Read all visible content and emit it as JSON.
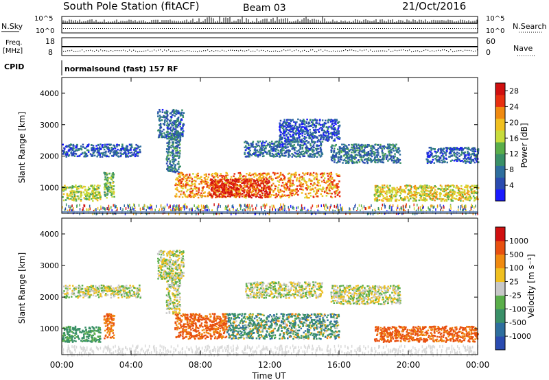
{
  "header": {
    "station": "South Pole Station (fitACF)",
    "beam": "Beam 03",
    "date": "21/Oct/2016"
  },
  "status_panel": {
    "nsky_label": "N.Sky",
    "nsky_ticks": [
      "10^5",
      "10^0"
    ],
    "nsearch_label": "N.Search",
    "nsearch_ticks": [
      "10^5",
      "10^0"
    ],
    "freq_label": "Freq.",
    "freq_unit": "[MHz]",
    "freq_ticks": [
      "18",
      "8"
    ],
    "nave_label": "Nave",
    "nave_ticks": [
      "60",
      "0"
    ],
    "cpid_label": "CPID",
    "cpid_value": "normalsound (fast) 157 RF"
  },
  "chart_data": [
    {
      "type": "heatmap",
      "parameter": "Power",
      "ylabel": "Slant Range [km]",
      "yticks": [
        "4000",
        "3000",
        "2000",
        "1000"
      ],
      "ylim": [
        180,
        4500
      ],
      "xlim": [
        "00:00",
        "24:00"
      ],
      "colorbar": {
        "label": "Power [dB]",
        "ticks": [
          "28",
          "24",
          "20",
          "16",
          "12",
          "8",
          "4"
        ],
        "range": [
          0,
          30
        ],
        "colors": [
          "#1a1aff",
          "#2a4bb0",
          "#2e6e9e",
          "#3a9068",
          "#5aae4a",
          "#c8dc3c",
          "#f0c020",
          "#f08a10",
          "#e83010",
          "#d01010"
        ]
      },
      "echo_regions": [
        {
          "t": [
            0.0,
            2.2
          ],
          "r": [
            600,
            1100
          ],
          "power": 16
        },
        {
          "t": [
            2.4,
            3.0
          ],
          "r": [
            700,
            1500
          ],
          "power": 14
        },
        {
          "t": [
            0.0,
            4.5
          ],
          "r": [
            2000,
            2400
          ],
          "power": 6
        },
        {
          "t": [
            5.5,
            7.0
          ],
          "r": [
            2600,
            3500
          ],
          "power": 7
        },
        {
          "t": [
            6.0,
            6.8
          ],
          "r": [
            1500,
            2800
          ],
          "power": 8
        },
        {
          "t": [
            6.5,
            16.0
          ],
          "r": [
            700,
            1500
          ],
          "power": 22
        },
        {
          "t": [
            8.5,
            12.0
          ],
          "r": [
            700,
            1300
          ],
          "power": 27
        },
        {
          "t": [
            10.5,
            15.0
          ],
          "r": [
            2000,
            2500
          ],
          "power": 7
        },
        {
          "t": [
            12.5,
            16.0
          ],
          "r": [
            2500,
            3200
          ],
          "power": 5
        },
        {
          "t": [
            15.5,
            19.5
          ],
          "r": [
            1800,
            2400
          ],
          "power": 8
        },
        {
          "t": [
            18.0,
            24.0
          ],
          "r": [
            600,
            1100
          ],
          "power": 18
        },
        {
          "t": [
            21.0,
            24.0
          ],
          "r": [
            1800,
            2300
          ],
          "power": 6
        },
        {
          "t": [
            0.0,
            24.0
          ],
          "r": [
            200,
            500
          ],
          "power": 12
        }
      ]
    },
    {
      "type": "heatmap",
      "parameter": "Velocity",
      "ylabel": "Slant Range [km]",
      "yticks": [
        "4000",
        "3000",
        "2000",
        "1000"
      ],
      "ylim": [
        180,
        4500
      ],
      "xlim": [
        "00:00",
        "24:00"
      ],
      "xlabel": "Time UT",
      "xticks": [
        "00:00",
        "04:00",
        "08:00",
        "12:00",
        "16:00",
        "20:00",
        "00:00"
      ],
      "colorbar": {
        "label": "Velocity [m s⁻¹]",
        "ticks": [
          "1000",
          "500",
          "100",
          "25",
          "-25",
          "-100",
          "-500",
          "-1000"
        ],
        "colors": [
          "#2a4bb0",
          "#2e6e9e",
          "#3a9068",
          "#5aae4a",
          "#c8c8c8",
          "#f0c020",
          "#f08a10",
          "#e85010",
          "#d01010"
        ]
      },
      "echo_regions": [
        {
          "t": [
            0.0,
            2.2
          ],
          "r": [
            600,
            1100
          ],
          "velocity": 80
        },
        {
          "t": [
            2.4,
            3.0
          ],
          "r": [
            700,
            1500
          ],
          "velocity": -300
        },
        {
          "t": [
            0.0,
            4.5
          ],
          "r": [
            2000,
            2400
          ],
          "velocity": 0
        },
        {
          "t": [
            5.5,
            7.0
          ],
          "r": [
            2600,
            3500
          ],
          "velocity": 0
        },
        {
          "t": [
            6.0,
            6.8
          ],
          "r": [
            1500,
            2800
          ],
          "velocity": 0
        },
        {
          "t": [
            6.5,
            9.5
          ],
          "r": [
            700,
            1500
          ],
          "velocity": -400
        },
        {
          "t": [
            9.5,
            16.0
          ],
          "r": [
            700,
            1500
          ],
          "velocity": 150
        },
        {
          "t": [
            10.5,
            15.0
          ],
          "r": [
            2000,
            2500
          ],
          "velocity": 0
        },
        {
          "t": [
            15.5,
            19.5
          ],
          "r": [
            1800,
            2400
          ],
          "velocity": 0
        },
        {
          "t": [
            18.0,
            24.0
          ],
          "r": [
            600,
            1100
          ],
          "velocity": -400
        },
        {
          "t": [
            0.0,
            24.0
          ],
          "r": [
            200,
            500
          ],
          "velocity": 0
        }
      ]
    }
  ]
}
